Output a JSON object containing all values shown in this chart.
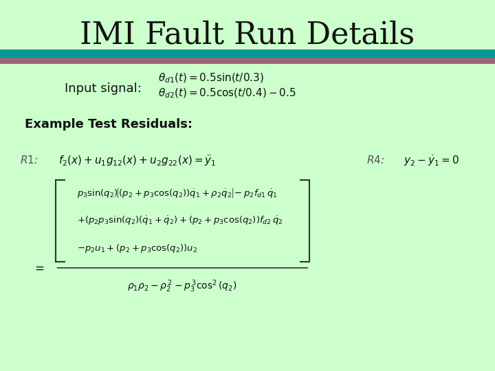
{
  "title": "IMI Fault Run Details",
  "bg_color": "#ccffcc",
  "title_color": "#111111",
  "title_fontsize": 32,
  "bar_color_top": "#009999",
  "bar_color_bottom": "#996677",
  "input_signal_label": "Input signal:",
  "residuals_label": "Example Test Residuals:"
}
